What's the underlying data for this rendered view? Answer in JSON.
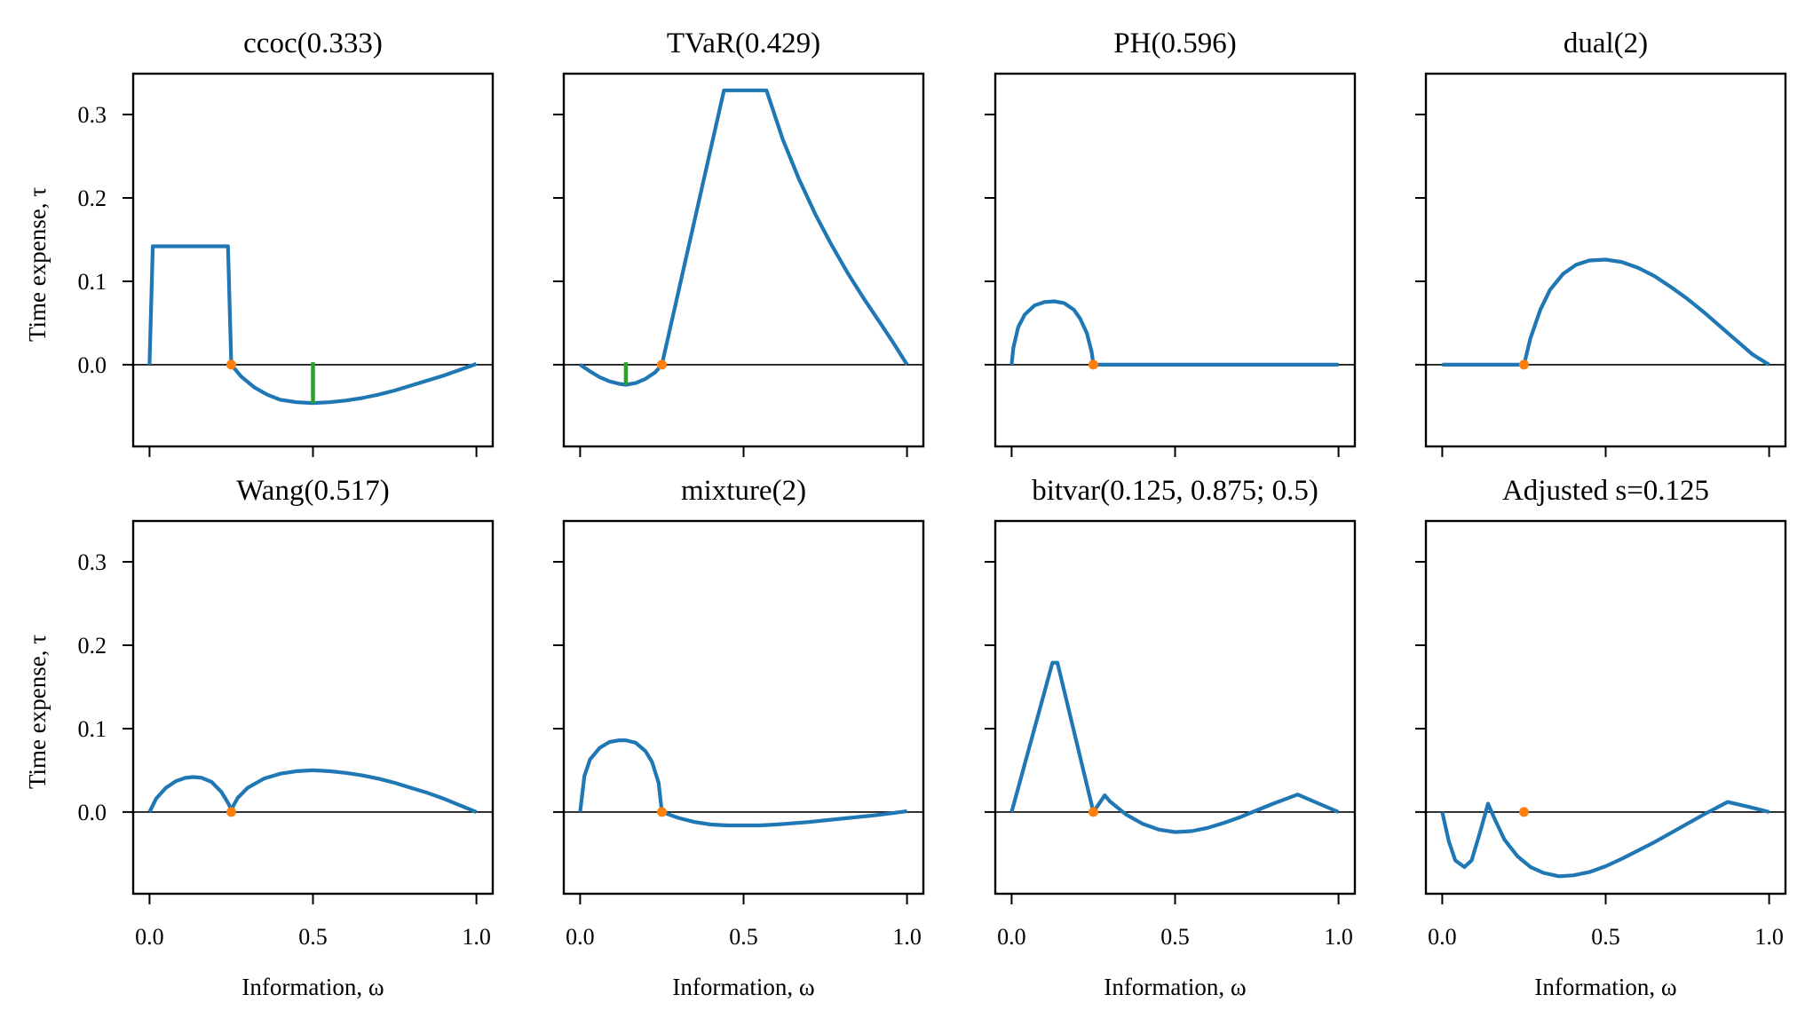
{
  "chart_data": {
    "type": "line",
    "layout": "2x4 grid of subplots, shared axes",
    "shared": {
      "xlabel": "Information, ω",
      "ylabel": "Time expense, τ",
      "xlim": [
        -0.05,
        1.05
      ],
      "ylim": [
        -0.098,
        0.349
      ],
      "xticks": [
        0.0,
        0.5,
        1.0
      ],
      "xtick_labels": [
        "0.0",
        "0.5",
        "1.0"
      ],
      "yticks": [
        0.0,
        0.1,
        0.2,
        0.3
      ],
      "ytick_labels": [
        "0.0",
        "0.1",
        "0.2",
        "0.3"
      ],
      "zero_line": true,
      "grid": false,
      "colors": {
        "curve": "#1f77b4",
        "marker": "#ff7f0e",
        "min_marker": "#2ca02c",
        "zero_line": "#000000"
      }
    },
    "panels": [
      {
        "title": "ccoc(0.333)",
        "series": {
          "name": "time expense",
          "x": [
            0,
            0.01,
            0.24,
            0.25,
            0.28,
            0.32,
            0.36,
            0.4,
            0.45,
            0.5,
            0.55,
            0.6,
            0.65,
            0.7,
            0.75,
            0.8,
            0.85,
            0.9,
            0.95,
            1.0
          ],
          "y": [
            0,
            0.142,
            0.142,
            0,
            -0.014,
            -0.027,
            -0.036,
            -0.042,
            -0.045,
            -0.046,
            -0.045,
            -0.043,
            -0.04,
            -0.036,
            -0.031,
            -0.025,
            -0.019,
            -0.013,
            -0.006,
            0.001
          ]
        },
        "marker": {
          "x": 0.25,
          "y": 0.0
        },
        "min_marker": {
          "x": 0.5,
          "y_from": 0.003,
          "y_to": -0.046
        }
      },
      {
        "title": "TVaR(0.429)",
        "series": {
          "name": "time expense",
          "x": [
            0,
            0.03,
            0.06,
            0.09,
            0.12,
            0.14,
            0.17,
            0.2,
            0.23,
            0.25,
            0.44,
            0.57,
            0.62,
            0.67,
            0.72,
            0.77,
            0.82,
            0.87,
            0.92,
            0.96,
            1.0
          ],
          "y": [
            0,
            -0.008,
            -0.015,
            -0.02,
            -0.023,
            -0.024,
            -0.022,
            -0.017,
            -0.009,
            0,
            0.329,
            0.329,
            0.27,
            0.222,
            0.18,
            0.143,
            0.109,
            0.078,
            0.049,
            0.025,
            0
          ]
        },
        "marker": {
          "x": 0.25,
          "y": 0.0
        },
        "min_marker": {
          "x": 0.14,
          "y_from": 0.003,
          "y_to": -0.024
        }
      },
      {
        "title": "PH(0.596)",
        "series": {
          "name": "time expense",
          "x": [
            0,
            0.005,
            0.02,
            0.04,
            0.07,
            0.1,
            0.13,
            0.16,
            0.19,
            0.21,
            0.23,
            0.245,
            0.25,
            1.0
          ],
          "y": [
            0,
            0.02,
            0.045,
            0.06,
            0.071,
            0.075,
            0.076,
            0.074,
            0.066,
            0.055,
            0.038,
            0.015,
            0,
            0
          ]
        },
        "marker": {
          "x": 0.25,
          "y": 0.0
        }
      },
      {
        "title": "dual(2)",
        "series": {
          "name": "time expense",
          "x": [
            0,
            0.25,
            0.27,
            0.3,
            0.33,
            0.37,
            0.41,
            0.45,
            0.5,
            0.55,
            0.6,
            0.65,
            0.7,
            0.75,
            0.8,
            0.85,
            0.9,
            0.95,
            1.0
          ],
          "y": [
            0,
            0,
            0.032,
            0.066,
            0.09,
            0.109,
            0.12,
            0.125,
            0.126,
            0.123,
            0.116,
            0.106,
            0.093,
            0.079,
            0.063,
            0.046,
            0.029,
            0.012,
            0
          ]
        },
        "marker": {
          "x": 0.25,
          "y": 0.0
        }
      },
      {
        "title": "Wang(0.517)",
        "series": {
          "name": "time expense",
          "x": [
            0,
            0.02,
            0.05,
            0.08,
            0.11,
            0.135,
            0.16,
            0.19,
            0.22,
            0.24,
            0.25,
            0.27,
            0.3,
            0.35,
            0.4,
            0.45,
            0.5,
            0.55,
            0.6,
            0.65,
            0.7,
            0.75,
            0.8,
            0.85,
            0.9,
            0.95,
            1.0
          ],
          "y": [
            0,
            0.016,
            0.029,
            0.037,
            0.041,
            0.042,
            0.041,
            0.036,
            0.024,
            0.011,
            0.003,
            0.017,
            0.029,
            0.04,
            0.046,
            0.049,
            0.05,
            0.049,
            0.047,
            0.044,
            0.04,
            0.035,
            0.029,
            0.023,
            0.016,
            0.008,
            0
          ]
        },
        "marker": {
          "x": 0.25,
          "y": 0.0
        }
      },
      {
        "title": "mixture(2)",
        "series": {
          "name": "time expense",
          "x": [
            0,
            0.013,
            0.03,
            0.06,
            0.09,
            0.12,
            0.14,
            0.17,
            0.2,
            0.22,
            0.24,
            0.25,
            0.3,
            0.35,
            0.4,
            0.45,
            0.5,
            0.55,
            0.6,
            0.7,
            0.8,
            0.9,
            1.0
          ],
          "y": [
            0,
            0.043,
            0.063,
            0.077,
            0.084,
            0.086,
            0.086,
            0.083,
            0.073,
            0.06,
            0.035,
            0,
            -0.007,
            -0.012,
            -0.015,
            -0.016,
            -0.016,
            -0.016,
            -0.015,
            -0.012,
            -0.008,
            -0.004,
            0.001
          ]
        },
        "marker": {
          "x": 0.25,
          "y": 0.0
        }
      },
      {
        "title": "bitvar(0.125, 0.875; 0.5)",
        "series": {
          "name": "time expense",
          "x": [
            0,
            0.125,
            0.14,
            0.25,
            0.285,
            0.3,
            0.35,
            0.4,
            0.45,
            0.5,
            0.55,
            0.6,
            0.65,
            0.7,
            0.75,
            0.8,
            0.875,
            0.94,
            1.0
          ],
          "y": [
            0,
            0.179,
            0.179,
            0,
            0.02,
            0.013,
            -0.003,
            -0.014,
            -0.021,
            -0.024,
            -0.023,
            -0.019,
            -0.013,
            -0.006,
            0.002,
            0.01,
            0.021,
            0.01,
            0
          ]
        },
        "marker": {
          "x": 0.25,
          "y": 0.0
        }
      },
      {
        "title": "Adjusted s=0.125",
        "series": {
          "name": "time expense",
          "x": [
            0,
            0.02,
            0.04,
            0.068,
            0.09,
            0.115,
            0.14,
            0.16,
            0.19,
            0.23,
            0.27,
            0.31,
            0.357,
            0.4,
            0.45,
            0.5,
            0.55,
            0.6,
            0.65,
            0.7,
            0.75,
            0.8,
            0.873,
            0.94,
            1.0
          ],
          "y": [
            0,
            -0.035,
            -0.058,
            -0.066,
            -0.058,
            -0.025,
            0.01,
            -0.008,
            -0.033,
            -0.053,
            -0.066,
            -0.073,
            -0.077,
            -0.076,
            -0.072,
            -0.065,
            -0.056,
            -0.046,
            -0.036,
            -0.025,
            -0.014,
            -0.003,
            0.012,
            0.006,
            0
          ]
        },
        "marker": {
          "x": 0.25,
          "y": 0.0
        }
      }
    ]
  }
}
